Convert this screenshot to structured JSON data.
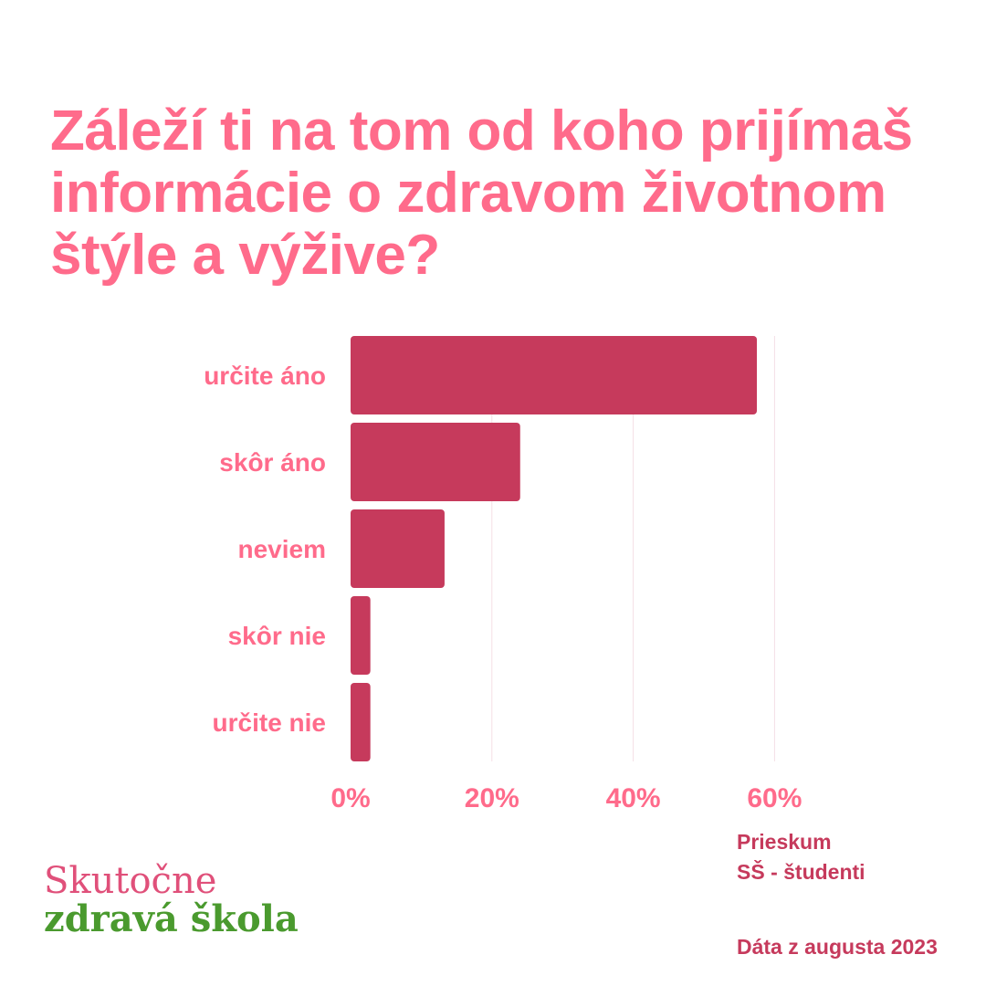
{
  "title": "Záleží ti na tom od koho prijímaš informácie o zdravom životnom štýle a výžive?",
  "colors": {
    "title": "#ff6b8b",
    "bar": "#c63a5c",
    "labels": "#ff6b8b",
    "footer_text": "#c63a5c",
    "logo_line1": "#e0507a",
    "logo_line2": "#4a9a2e"
  },
  "chart_data": {
    "type": "bar",
    "orientation": "horizontal",
    "categories": [
      "určite áno",
      "skôr áno",
      "neviem",
      "skôr nie",
      "určite nie"
    ],
    "values": [
      57.5,
      24,
      13.3,
      2.8,
      2.8
    ],
    "unit": "%",
    "xlim": [
      0,
      60
    ],
    "xticks": [
      "0%",
      "20%",
      "40%",
      "60%"
    ],
    "grid": true,
    "legend": "none"
  },
  "footer": {
    "survey_line1": "Prieskum",
    "survey_line2": "SŠ - študenti",
    "date": "Dáta z augusta 2023"
  },
  "logo": {
    "line1": "Skutočne",
    "line2": "zdravá škola"
  }
}
